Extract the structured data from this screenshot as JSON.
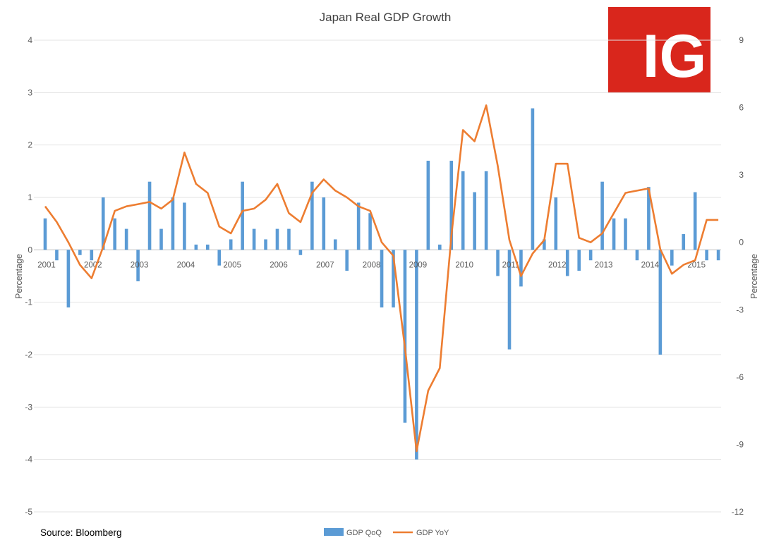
{
  "chart_data": {
    "type": "bar+line",
    "title": "Japan Real GDP Growth",
    "ylabel_left": "Percentage",
    "ylabel_right": "Percentage",
    "source": "Source: Bloomberg",
    "left_axis": {
      "min": -5,
      "max": 4,
      "ticks": [
        4,
        3,
        2,
        1,
        0,
        -1,
        -2,
        -3,
        -4,
        -5
      ]
    },
    "right_axis": {
      "min": -12,
      "max": 9,
      "ticks": [
        9,
        6,
        3,
        0,
        -3,
        -6,
        -9,
        -12
      ]
    },
    "year_labels": [
      "2001",
      "2002",
      "2003",
      "2004",
      "2005",
      "2006",
      "2007",
      "2008",
      "2009",
      "2010",
      "2011",
      "2012",
      "2013",
      "2014",
      "2015"
    ],
    "series": [
      {
        "name": "GDP QoQ",
        "type": "bar",
        "axis": "left",
        "color": "#5B9BD5",
        "values": [
          0.6,
          -0.2,
          -1.1,
          -0.1,
          -0.2,
          1.0,
          0.6,
          0.4,
          -0.6,
          1.3,
          0.4,
          1.0,
          0.9,
          0.1,
          0.1,
          -0.3,
          0.2,
          1.3,
          0.4,
          0.2,
          0.4,
          0.4,
          -0.1,
          1.3,
          1.0,
          0.2,
          -0.4,
          0.9,
          0.7,
          -1.1,
          -1.1,
          -3.3,
          -4.0,
          1.7,
          0.1,
          1.7,
          1.5,
          1.1,
          1.5,
          -0.5,
          -1.9,
          -0.7,
          2.7,
          0.2,
          1.0,
          -0.5,
          -0.4,
          -0.2,
          1.3,
          0.6,
          0.6,
          -0.2,
          1.2,
          -2.0,
          -0.3,
          0.3,
          1.1,
          -0.2,
          -0.2
        ]
      },
      {
        "name": "GDP YoY",
        "type": "line",
        "axis": "right",
        "color": "#ED7D31",
        "values": [
          1.6,
          0.9,
          0.0,
          -1.0,
          -1.6,
          -0.2,
          1.4,
          1.6,
          1.7,
          1.8,
          1.5,
          1.9,
          4.0,
          2.6,
          2.2,
          0.7,
          0.4,
          1.4,
          1.5,
          1.9,
          2.6,
          1.3,
          0.9,
          2.2,
          2.8,
          2.3,
          2.0,
          1.6,
          1.4,
          0.0,
          -0.6,
          -4.7,
          -9.3,
          -6.6,
          -5.6,
          0.3,
          5.0,
          4.5,
          6.1,
          3.4,
          0.1,
          -1.5,
          -0.5,
          0.1,
          3.5,
          3.5,
          0.2,
          0.0,
          0.4,
          1.3,
          2.2,
          2.3,
          2.4,
          -0.3,
          -1.4,
          -1.0,
          -0.8,
          1.0,
          1.0
        ]
      }
    ],
    "legend": [
      "GDP QoQ",
      "GDP YoY"
    ],
    "legend_position": "bottom",
    "grid": true
  },
  "logo": {
    "text": "IG",
    "color": "#D9261C"
  }
}
